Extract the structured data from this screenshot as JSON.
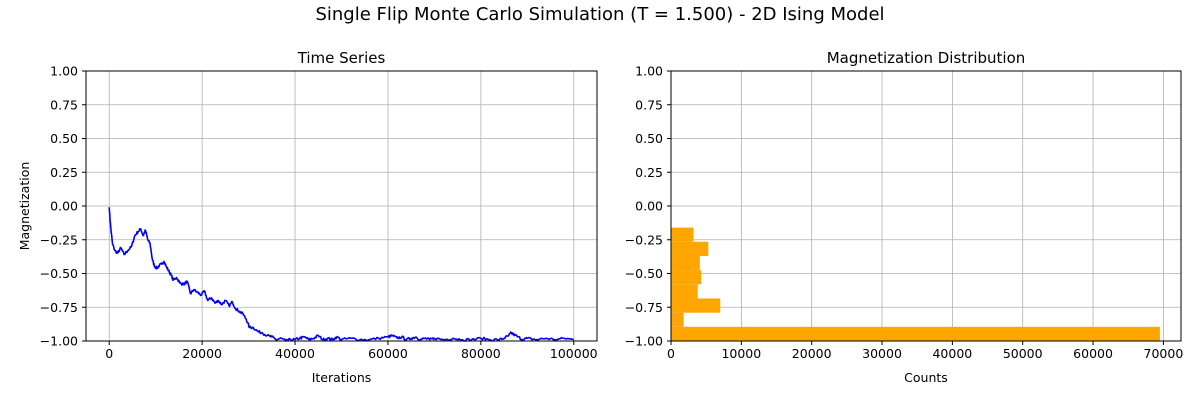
{
  "figure": {
    "title": "Single Flip Monte Carlo Simulation (T = 1.500) - 2D Ising Model"
  },
  "chart_data": [
    {
      "type": "line",
      "title": "Time Series",
      "xlabel": "Iterations",
      "ylabel": "Magnetization",
      "xlim": [
        -5000,
        105000
      ],
      "ylim": [
        -1.0,
        1.0
      ],
      "xticks": [
        0,
        20000,
        40000,
        60000,
        80000,
        100000
      ],
      "yticks": [
        -1.0,
        -0.75,
        -0.5,
        -0.25,
        0.0,
        0.25,
        0.5,
        0.75,
        1.0
      ],
      "ytick_labels": [
        "−1.00",
        "−0.75",
        "−0.50",
        "−0.25",
        "0.00",
        "0.25",
        "0.50",
        "0.75",
        "1.00"
      ],
      "grid": true,
      "color": "#0000ff",
      "series": [
        {
          "x": [
            0,
            300,
            700,
            1200,
            1800,
            2500,
            3200,
            4000,
            4800,
            5500,
            6200,
            6800,
            7300,
            7800,
            8300,
            8800,
            9300,
            9800,
            10300,
            10800,
            11300,
            11800,
            12300,
            12800,
            13300,
            13800,
            14500,
            15200,
            16000,
            16800,
            17500,
            18200,
            19000,
            19800,
            20500,
            21200,
            22000,
            22800,
            23500,
            24200,
            25000,
            25800,
            26500,
            27200,
            28000,
            28800,
            29500,
            30200,
            31000,
            32000,
            33000,
            34000,
            35000,
            36000,
            37000,
            38000,
            39000,
            40000,
            41000,
            42000,
            43000,
            44000,
            45000,
            46000,
            47000,
            48000,
            49000,
            50000,
            52000,
            54000,
            56000,
            58000,
            60000,
            61000,
            62000,
            63000,
            64000,
            65000,
            66000,
            67000,
            68000,
            69000,
            70000,
            72000,
            74000,
            76000,
            78000,
            80000,
            82000,
            84000,
            85000,
            86000,
            86500,
            87000,
            88000,
            89000,
            90000,
            92000,
            94000,
            96000,
            98000,
            100000
          ],
          "y": [
            -0.01,
            -0.15,
            -0.28,
            -0.33,
            -0.35,
            -0.31,
            -0.36,
            -0.33,
            -0.3,
            -0.22,
            -0.19,
            -0.17,
            -0.22,
            -0.18,
            -0.25,
            -0.28,
            -0.4,
            -0.45,
            -0.46,
            -0.44,
            -0.43,
            -0.41,
            -0.45,
            -0.48,
            -0.51,
            -0.55,
            -0.53,
            -0.57,
            -0.58,
            -0.56,
            -0.65,
            -0.62,
            -0.64,
            -0.66,
            -0.63,
            -0.7,
            -0.68,
            -0.72,
            -0.7,
            -0.73,
            -0.7,
            -0.74,
            -0.71,
            -0.76,
            -0.78,
            -0.8,
            -0.84,
            -0.9,
            -0.9,
            -0.93,
            -0.94,
            -0.96,
            -0.97,
            -0.99,
            -0.98,
            -1.0,
            -0.99,
            -0.99,
            -0.98,
            -0.97,
            -0.99,
            -0.98,
            -0.96,
            -0.99,
            -0.98,
            -0.99,
            -0.97,
            -0.99,
            -0.98,
            -0.99,
            -0.99,
            -0.98,
            -0.97,
            -0.96,
            -0.98,
            -0.97,
            -0.99,
            -0.98,
            -0.97,
            -0.99,
            -0.98,
            -0.99,
            -0.98,
            -0.99,
            -0.98,
            -0.99,
            -0.99,
            -0.98,
            -0.99,
            -0.99,
            -0.98,
            -0.96,
            -0.94,
            -0.95,
            -0.97,
            -0.99,
            -0.98,
            -0.99,
            -0.98,
            -0.99,
            -0.98,
            -0.99
          ]
        }
      ]
    },
    {
      "type": "bar",
      "orientation": "horizontal",
      "title": "Magnetization Distribution",
      "xlabel": "Counts",
      "ylabel": "",
      "xlim": [
        0,
        72500
      ],
      "ylim": [
        -1.0,
        1.0
      ],
      "xticks": [
        0,
        10000,
        20000,
        30000,
        40000,
        50000,
        60000,
        70000
      ],
      "yticks": [
        -1.0,
        -0.75,
        -0.5,
        -0.25,
        0.0,
        0.25,
        0.5,
        0.75,
        1.0
      ],
      "ytick_labels": [
        "−1.00",
        "−0.75",
        "−0.50",
        "−0.25",
        "0.00",
        "0.25",
        "0.50",
        "0.75",
        "1.00"
      ],
      "grid": true,
      "color": "#ffa500",
      "bins": [
        {
          "y0": -1.0,
          "y1": -0.895,
          "count": 69500
        },
        {
          "y0": -0.895,
          "y1": -0.79,
          "count": 1800
        },
        {
          "y0": -0.79,
          "y1": -0.685,
          "count": 7000
        },
        {
          "y0": -0.685,
          "y1": -0.58,
          "count": 3800
        },
        {
          "y0": -0.58,
          "y1": -0.475,
          "count": 4300
        },
        {
          "y0": -0.475,
          "y1": -0.37,
          "count": 4100
        },
        {
          "y0": -0.37,
          "y1": -0.265,
          "count": 5300
        },
        {
          "y0": -0.265,
          "y1": -0.16,
          "count": 3200
        }
      ]
    }
  ]
}
